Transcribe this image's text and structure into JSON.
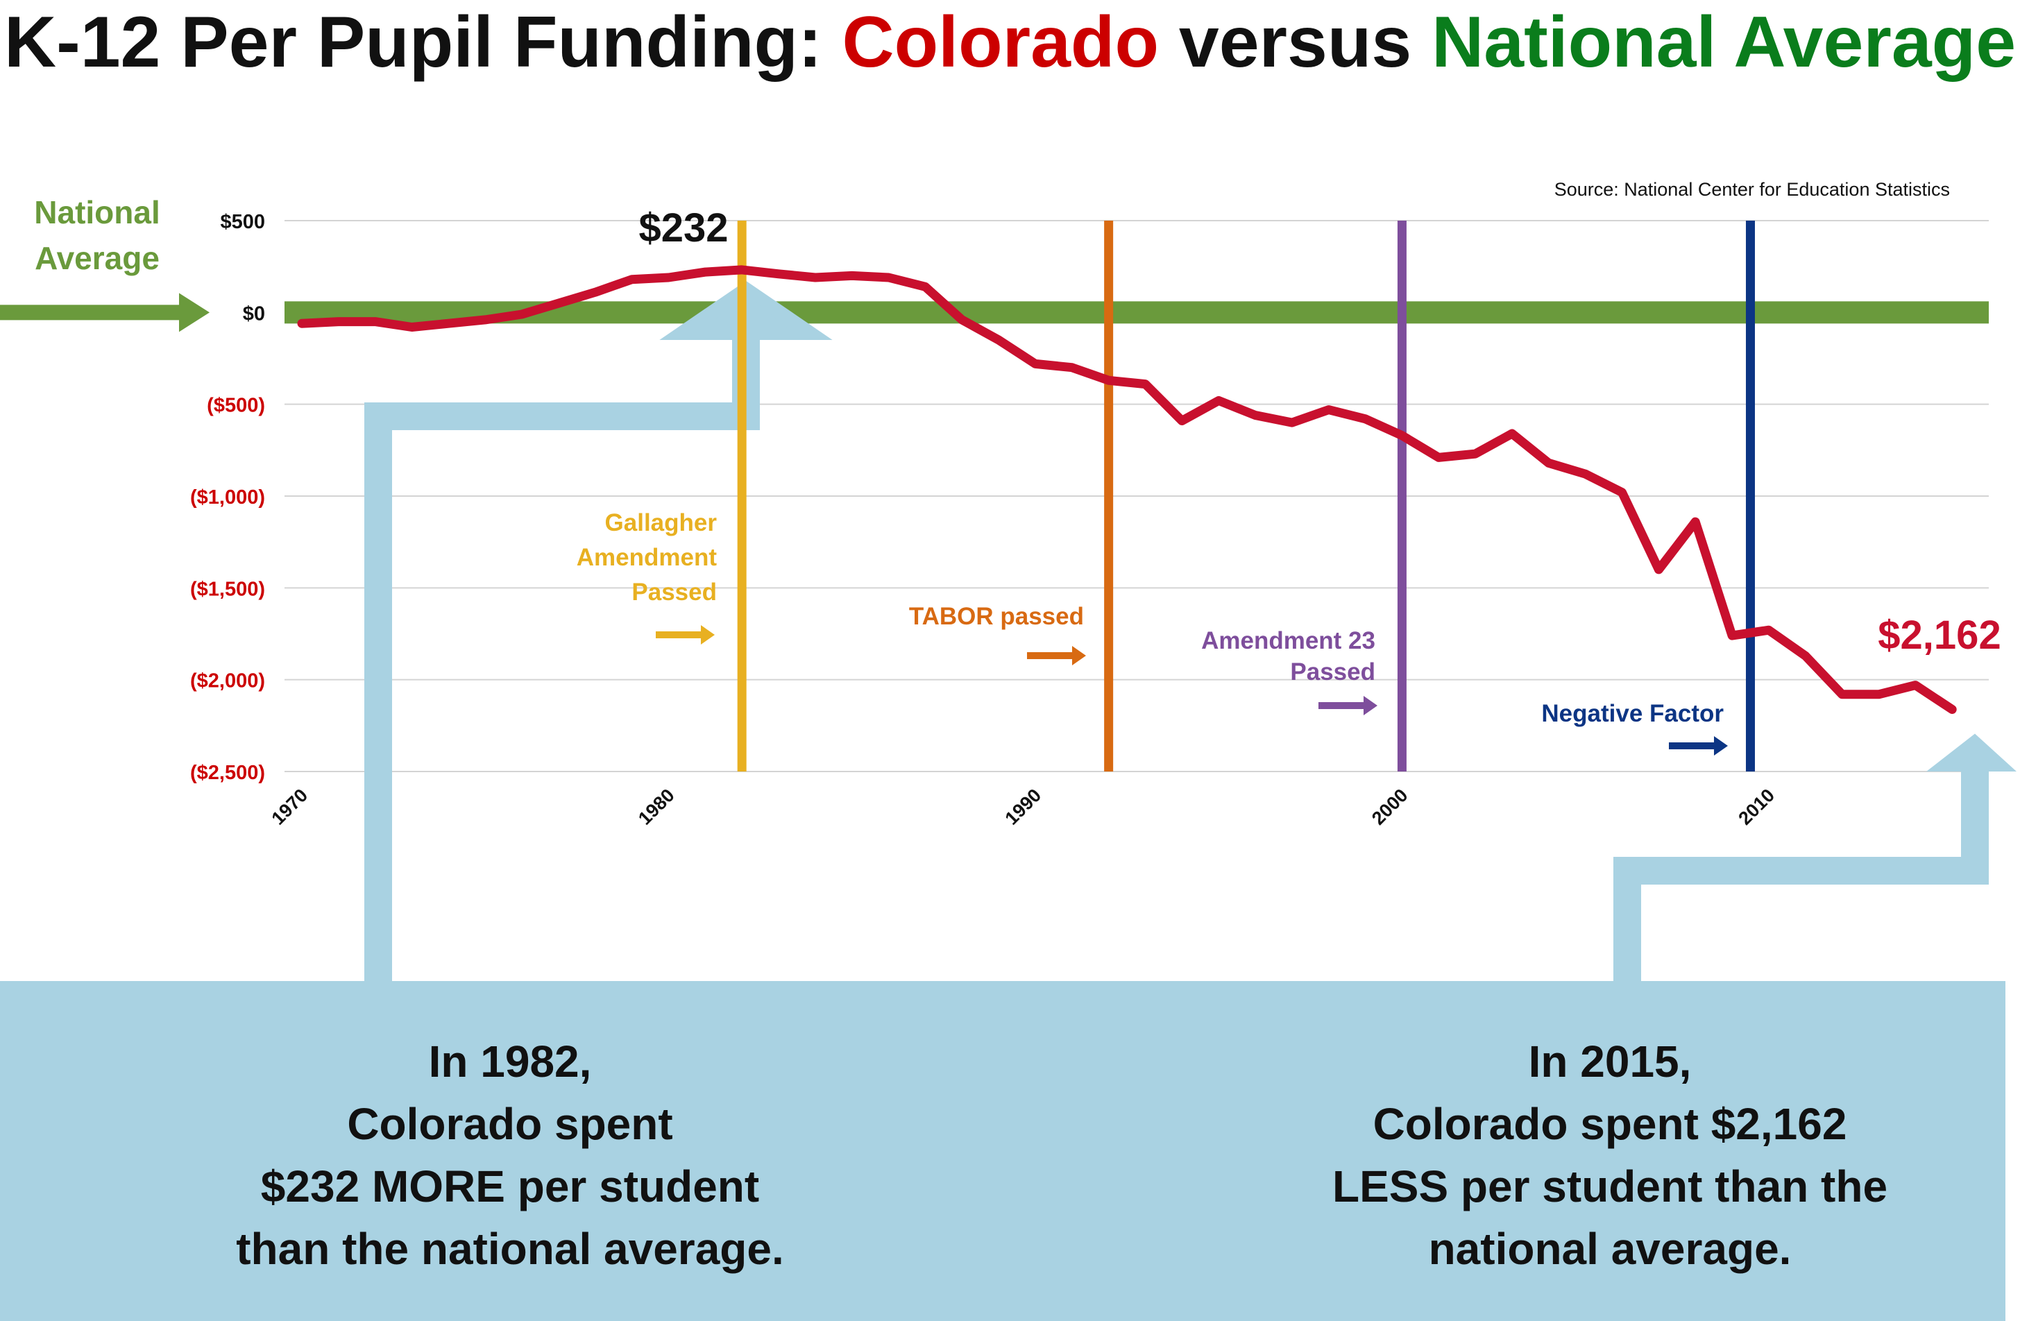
{
  "title": {
    "part1": "K-12 Per Pupil Funding: ",
    "part2": "Colorado",
    "part3": " versus ",
    "part4": "National Average"
  },
  "colors": {
    "colorado": "#c8102e",
    "national": "#6a9a3c",
    "title_red": "#cc0000",
    "title_green": "#0a7d1c",
    "callout": "#a9d2e2",
    "negative_tick": "#cc0000",
    "gallagher": "#e8b021",
    "tabor": "#d86a12",
    "amendment23": "#7e4e9c",
    "negative_factor": "#0c3584"
  },
  "source": "Source: National Center for Education Statistics",
  "national_label": [
    "National",
    "Average"
  ],
  "chart_data": {
    "type": "line",
    "title": "K-12 Per Pupil Funding: Colorado versus National Average",
    "xlabel": "",
    "ylabel": "",
    "xlim": [
      1970,
      2016
    ],
    "ylim": [
      -2500,
      500
    ],
    "x_ticks": [
      1970,
      1980,
      1990,
      2000,
      2010
    ],
    "y_ticks": [
      {
        "value": 500,
        "label": "$500"
      },
      {
        "value": 0,
        "label": "$0"
      },
      {
        "value": -500,
        "label": "($500)"
      },
      {
        "value": -1000,
        "label": "($1,000)"
      },
      {
        "value": -1500,
        "label": "($1,500)"
      },
      {
        "value": -2000,
        "label": "($2,000)"
      },
      {
        "value": -2500,
        "label": "($2,500)"
      }
    ],
    "grid": true,
    "reference_line": {
      "value": 0
    },
    "series": [
      {
        "x": [
          1970,
          1971,
          1972,
          1973,
          1974,
          1975,
          1976,
          1977,
          1978,
          1979,
          1980,
          1981,
          1982,
          1983,
          1984,
          1985,
          1986,
          1987,
          1988,
          1989,
          1990,
          1991,
          1992,
          1993,
          1994,
          1995,
          1996,
          1997,
          1998,
          1999,
          2000,
          2001,
          2002,
          2003,
          2004,
          2005,
          2006,
          2007,
          2008,
          2009,
          2010,
          2011,
          2012,
          2013,
          2014,
          2015
        ],
        "values": [
          -60,
          -50,
          -50,
          -80,
          -60,
          -40,
          -10,
          50,
          110,
          180,
          190,
          220,
          232,
          210,
          190,
          200,
          190,
          140,
          -40,
          -150,
          -280,
          -300,
          -370,
          -390,
          -590,
          -480,
          -560,
          -600,
          -530,
          -580,
          -670,
          -790,
          -770,
          -660,
          -820,
          -880,
          -980,
          -1400,
          -1140,
          -1760,
          -1730,
          -1870,
          -2080,
          -2080,
          -2030,
          -2162
        ]
      }
    ],
    "annotations": {
      "peak": {
        "x": 1982,
        "y": 232,
        "label": "$232"
      },
      "end": {
        "x": 2015,
        "y": -2162,
        "label": "$2,162"
      }
    },
    "events": [
      {
        "x": 1982,
        "lines": [
          "Gallagher",
          "Amendment",
          "Passed"
        ],
        "color_key": "gallagher"
      },
      {
        "x": 1992,
        "lines": [
          "TABOR passed"
        ],
        "color_key": "tabor"
      },
      {
        "x": 2000,
        "lines": [
          "Amendment 23",
          "Passed"
        ],
        "color_key": "amendment23"
      },
      {
        "x": 2009.5,
        "lines": [
          "Negative Factor"
        ],
        "color_key": "negative_factor"
      }
    ]
  },
  "callouts": {
    "left": [
      "In 1982,",
      "Colorado spent",
      "$232 MORE per student",
      "than the national average."
    ],
    "right": [
      "In 2015,",
      "Colorado spent $2,162",
      "LESS per student than the",
      "national average."
    ]
  }
}
